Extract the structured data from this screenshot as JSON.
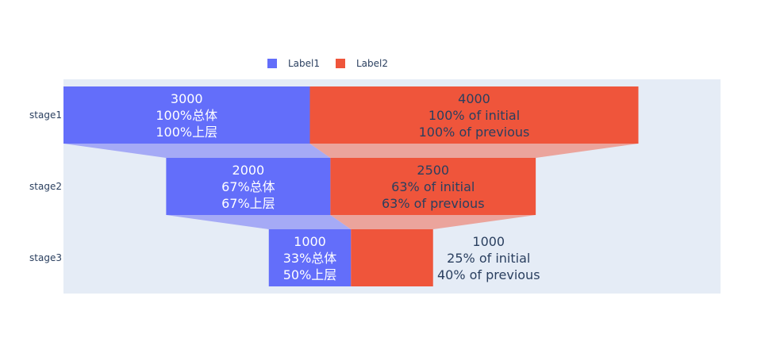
{
  "chart_data": {
    "type": "funnel",
    "categories": [
      "stage1",
      "stage2",
      "stage3"
    ],
    "series": [
      {
        "name": "Label1",
        "color": "#636efa",
        "connector_color": "#a5aaf6",
        "values": [
          3000,
          2000,
          1000
        ],
        "labels": [
          [
            "3000",
            "100%总体",
            "100%上层"
          ],
          [
            "2000",
            "67%总体",
            "67%上层"
          ],
          [
            "1000",
            "33%总体",
            "50%上层"
          ]
        ],
        "label_color": "#ffffff"
      },
      {
        "name": "Label2",
        "color": "#ef553b",
        "connector_color": "#eba49c",
        "values": [
          4000,
          2500,
          1000
        ],
        "labels": [
          [
            "4000",
            "100% of initial",
            "100% of previous"
          ],
          [
            "2500",
            "63% of initial",
            "63% of previous"
          ],
          [
            "1000",
            "25% of initial",
            "40% of previous"
          ]
        ],
        "label_color": "#2a3f5f",
        "last_label_outside": true
      }
    ],
    "xlim": [
      -3500,
      4500
    ],
    "legend": "top",
    "plot_bg": "#e5ecf6"
  }
}
